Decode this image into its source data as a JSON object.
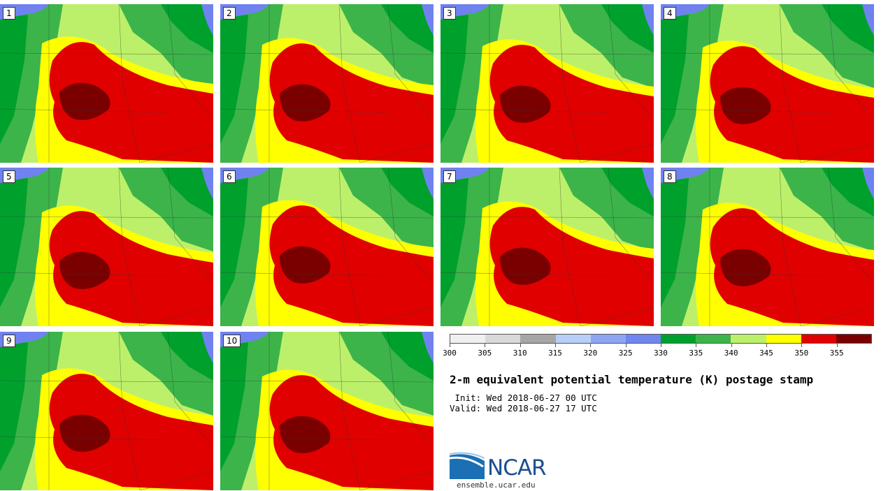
{
  "panels": [
    {
      "label": "1"
    },
    {
      "label": "2"
    },
    {
      "label": "3"
    },
    {
      "label": "4"
    },
    {
      "label": "5"
    },
    {
      "label": "6"
    },
    {
      "label": "7"
    },
    {
      "label": "8"
    },
    {
      "label": "9"
    },
    {
      "label": "10"
    }
  ],
  "legend": {
    "colors": [
      "#f0f0f0",
      "#d9d9d9",
      "#a6a6a6",
      "#b7cef6",
      "#8ea6f2",
      "#6f86ee",
      "#00a02c",
      "#3cb44a",
      "#bdf06a",
      "#ffff00",
      "#e00000",
      "#7a0000"
    ],
    "tick_labels": [
      "300",
      "305",
      "310",
      "315",
      "320",
      "325",
      "330",
      "335",
      "340",
      "345",
      "350",
      "355"
    ]
  },
  "title": "2-m equivalent potential temperature (K) postage stamp",
  "init": " Init: Wed 2018-06-27 00 UTC",
  "valid": "Valid: Wed 2018-06-27 17 UTC",
  "logo": {
    "name": "NCAR",
    "site": "ensemble.ucar.edu"
  },
  "palette": {
    "water": "#7082f0",
    "green_dark": "#00a02c",
    "green_mid": "#3cb44a",
    "green_light": "#bdf06a",
    "yellow": "#ffff00",
    "red": "#e00000",
    "dark_red": "#7a0000"
  }
}
